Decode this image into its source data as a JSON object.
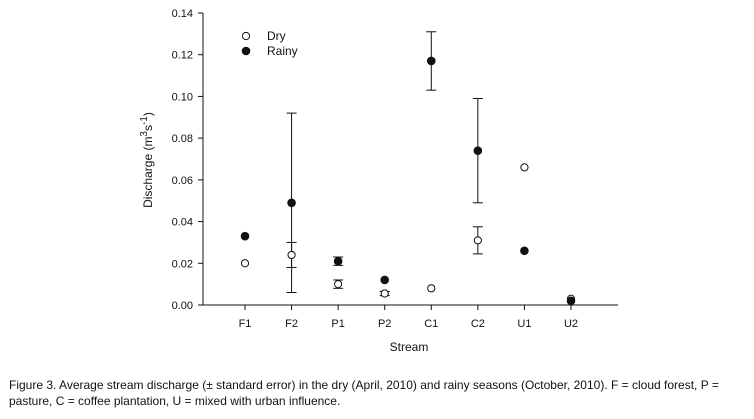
{
  "chart_data": {
    "type": "scatter",
    "categories": [
      "F1",
      "F2",
      "P1",
      "P2",
      "C1",
      "C2",
      "U1",
      "U2"
    ],
    "series": [
      {
        "name": "Dry",
        "marker": "open-circle",
        "values": [
          0.02,
          0.024,
          0.01,
          0.0055,
          0.008,
          0.031,
          0.066,
          0.003
        ],
        "errors": [
          0.0005,
          0.006,
          0.002,
          0.001,
          0.0008,
          0.0065,
          0.0005,
          0.0005
        ]
      },
      {
        "name": "Rainy",
        "marker": "filled-circle",
        "values": [
          0.033,
          0.049,
          0.021,
          0.012,
          0.117,
          0.074,
          0.026,
          0.002
        ],
        "errors": [
          0.0005,
          0.043,
          0.002,
          0.0008,
          0.014,
          0.025,
          0.0005,
          0.0005
        ]
      }
    ],
    "title": "",
    "xlabel": "Stream",
    "ylabel_main": "Discharge (m",
    "ylabel_sup1": "3",
    "ylabel_mid": "s",
    "ylabel_sup2": "-1",
    "ylabel_end": ")",
    "ylim": [
      0,
      0.14
    ],
    "yticks": [
      "0.00",
      "0.02",
      "0.04",
      "0.06",
      "0.08",
      "0.10",
      "0.12",
      "0.14"
    ],
    "legend_position": "top-left",
    "grid": false
  },
  "caption": {
    "text": "Figure 3. Average stream discharge (± standard error) in the dry (April, 2010) and rainy seasons (October, 2010). F = cloud forest, P = pasture, C = coffee plantation, U = mixed with urban influence."
  },
  "colors": {
    "ink": "#111111",
    "background": "#ffffff"
  }
}
